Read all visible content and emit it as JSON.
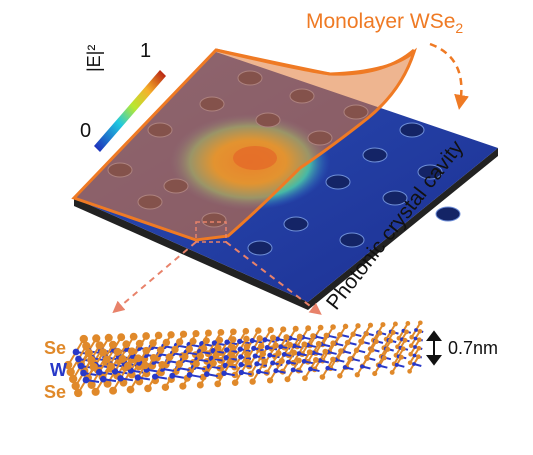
{
  "title": {
    "main": "Monolayer WSe",
    "subscript": "2"
  },
  "colorbar": {
    "max_label": "1",
    "min_label": "0",
    "title": "|E|²"
  },
  "cavity_label": "Photonic crystal cavity",
  "atoms": {
    "top": "Se",
    "middle": "W",
    "bottom": "Se"
  },
  "thickness_label": "0.7nm",
  "colors": {
    "accent_orange": "#ef7a24",
    "tungsten_blue": "#2838c8",
    "selenium_orange": "#e0892a"
  }
}
